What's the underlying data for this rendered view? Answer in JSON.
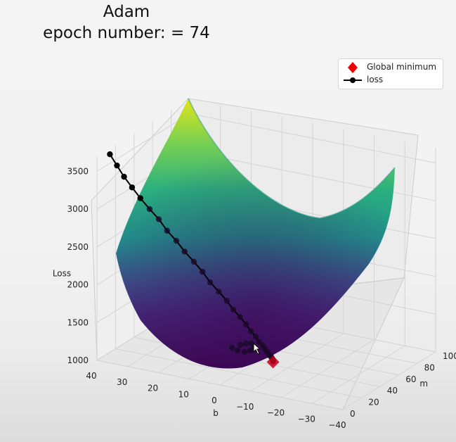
{
  "title": {
    "line1": "Adam",
    "line2": "epoch number: = 74"
  },
  "legend": [
    {
      "label": "Global minimum",
      "marker": "diamond",
      "color": "#ee0000"
    },
    {
      "label": "loss",
      "marker": "line-dot",
      "color": "#000000"
    }
  ],
  "chart_data": {
    "type": "surface",
    "title": "Adam",
    "subtitle": "epoch number: = 74",
    "zlabel": "Loss",
    "xlabel": "b",
    "ylabel": "m",
    "b_ticks": [
      40,
      30,
      20,
      10,
      0,
      -10,
      -20,
      -30,
      -40
    ],
    "m_ticks": [
      0,
      20,
      40,
      60,
      80,
      100
    ],
    "loss_ticks": [
      1000,
      1500,
      2000,
      2500,
      3000,
      3500
    ],
    "global_minimum": {
      "b": -4,
      "m": 44,
      "loss": 1000
    },
    "loss_path": [
      {
        "b": 37,
        "m": 4,
        "loss": 3720
      },
      {
        "b": 35,
        "m": 5,
        "loss": 3580
      },
      {
        "b": 33,
        "m": 6,
        "loss": 3440
      },
      {
        "b": 31,
        "m": 8,
        "loss": 3300
      },
      {
        "b": 28.6,
        "m": 9,
        "loss": 3170
      },
      {
        "b": 26.2,
        "m": 11,
        "loss": 3030
      },
      {
        "b": 23.8,
        "m": 13,
        "loss": 2900
      },
      {
        "b": 21.4,
        "m": 14,
        "loss": 2760
      },
      {
        "b": 19,
        "m": 16,
        "loss": 2630
      },
      {
        "b": 16.6,
        "m": 17,
        "loss": 2500
      },
      {
        "b": 14.2,
        "m": 19,
        "loss": 2370
      },
      {
        "b": 12,
        "m": 21,
        "loss": 2240
      },
      {
        "b": 9.8,
        "m": 22,
        "loss": 2110
      },
      {
        "b": 7.6,
        "m": 24,
        "loss": 1990
      },
      {
        "b": 5.6,
        "m": 26,
        "loss": 1870
      },
      {
        "b": 3.8,
        "m": 27,
        "loss": 1760
      },
      {
        "b": 2.2,
        "m": 29,
        "loss": 1660
      },
      {
        "b": 0.8,
        "m": 31,
        "loss": 1560
      },
      {
        "b": -0.4,
        "m": 32,
        "loss": 1470
      },
      {
        "b": -1.4,
        "m": 34,
        "loss": 1390
      },
      {
        "b": -2.2,
        "m": 35,
        "loss": 1320
      },
      {
        "b": -2.8,
        "m": 37,
        "loss": 1260
      },
      {
        "b": -3.2,
        "m": 38,
        "loss": 1210
      },
      {
        "b": -3.5,
        "m": 39,
        "loss": 1170
      },
      {
        "b": -3.7,
        "m": 40,
        "loss": 1140
      },
      {
        "b": -3.8,
        "m": 41,
        "loss": 1110
      },
      {
        "b": -3.9,
        "m": 42,
        "loss": 1090
      },
      {
        "b": -4,
        "m": 42.5,
        "loss": 1070
      },
      {
        "b": -4,
        "m": 43,
        "loss": 1055
      },
      {
        "b": -4,
        "m": 43.5,
        "loss": 1040
      },
      {
        "b": -4,
        "m": 44,
        "loss": 1030
      },
      {
        "b": -4,
        "m": 44,
        "loss": 1020
      },
      {
        "b": -4,
        "m": 44,
        "loss": 1010
      }
    ],
    "zlim": [
      1000,
      3700
    ],
    "grid": true,
    "legend_position": "top-right",
    "colormap": "viridis"
  }
}
